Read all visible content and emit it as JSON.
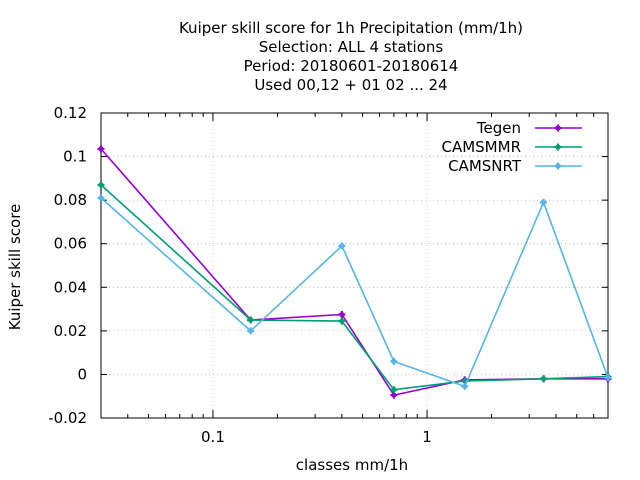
{
  "chart_data": {
    "type": "line",
    "title_lines": [
      "Kuiper skill score  for 1h Precipitation (mm/1h)",
      "Selection: ALL      4 stations",
      "Period: 20180601-20180614",
      "Used  00,12  + 01 02 ... 24"
    ],
    "xlabel": "classes mm/1h",
    "ylabel": "Kuiper skill score",
    "x_scale": "log",
    "xlim": [
      0.03,
      7
    ],
    "ylim": [
      -0.02,
      0.12
    ],
    "x_ticks": [
      0.1,
      1
    ],
    "x_tick_labels": [
      "0.1",
      "1"
    ],
    "y_ticks": [
      -0.02,
      0,
      0.02,
      0.04,
      0.06,
      0.08,
      0.1,
      0.12
    ],
    "y_tick_labels": [
      "-0.02",
      "0",
      "0.02",
      "0.04",
      "0.06",
      "0.08",
      "0.1",
      "0.12"
    ],
    "grid": true,
    "legend_position": "top-right",
    "x": [
      0.03,
      0.15,
      0.4,
      0.7,
      1.5,
      3.5,
      7
    ],
    "series": [
      {
        "name": "Tegen",
        "color": "#9400d3",
        "marker": "cross",
        "values": [
          0.1035,
          0.025,
          0.0275,
          -0.0095,
          -0.0025,
          -0.002,
          -0.002
        ]
      },
      {
        "name": "CAMSMMR",
        "color": "#009e73",
        "marker": "cross",
        "values": [
          0.087,
          0.025,
          0.0245,
          -0.007,
          -0.003,
          -0.002,
          -0.001
        ]
      },
      {
        "name": "CAMSNRT",
        "color": "#56b4e9",
        "marker": "cross",
        "values": [
          0.081,
          0.02,
          0.059,
          0.006,
          -0.0055,
          0.079,
          -0.0015
        ]
      }
    ]
  }
}
